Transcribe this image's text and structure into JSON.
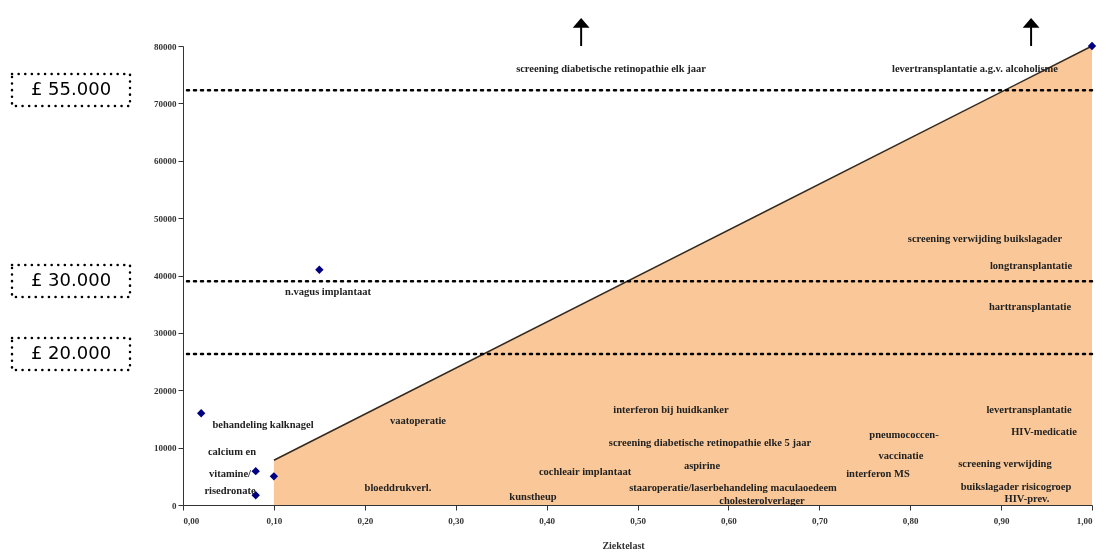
{
  "chart_data": {
    "type": "scatter",
    "xlabel": "Ziektelast",
    "xlim": [
      0,
      1
    ],
    "ylim": [
      0,
      80000
    ],
    "xticks": [
      {
        "value": 0,
        "label": "0,00"
      },
      {
        "value": 0.1,
        "label": "0,10"
      },
      {
        "value": 0.2,
        "label": "0,20"
      },
      {
        "value": 0.3,
        "label": "0,30"
      },
      {
        "value": 0.4,
        "label": "0,40"
      },
      {
        "value": 0.5,
        "label": "0,50"
      },
      {
        "value": 0.6,
        "label": "0,60"
      },
      {
        "value": 0.7,
        "label": "0,70"
      },
      {
        "value": 0.8,
        "label": "0,80"
      },
      {
        "value": 0.9,
        "label": "0,90"
      },
      {
        "value": 1,
        "label": "1,00"
      }
    ],
    "yticks": [
      0,
      10000,
      20000,
      30000,
      40000,
      50000,
      60000,
      70000,
      80000
    ],
    "grid": false,
    "legend": false,
    "series": [
      {
        "type": "area",
        "color": "#fac898",
        "x": [
          0.1,
          1
        ],
        "values": [
          7800,
          80000
        ]
      },
      {
        "marker": "diamond",
        "color": "#000080",
        "x": [
          0.02,
          0.08,
          0.08,
          0.1,
          0.15,
          1
        ],
        "values": [
          16000,
          5900,
          1700,
          5000,
          41000,
          80000
        ]
      }
    ],
    "ref_lines": [
      {
        "axis": "y",
        "value": 72300,
        "color": "#000000",
        "line_style": "dotted"
      },
      {
        "axis": "y",
        "value": 39000,
        "color": "#000000",
        "line_style": "dotted"
      },
      {
        "axis": "y",
        "value": 26300,
        "color": "#000000",
        "line_style": "dotted"
      }
    ],
    "annotations": [
      "screening diabetische retinopathie elk jaar",
      "levertransplantatie a.g.v. alcoholisme",
      "screening verwijding buikslagader",
      "longtransplantatie",
      "harttransplantatie",
      "n.vagus implantaat",
      "behandeling kalknagel",
      "calcium en",
      "vitamine/",
      "risedronate",
      "vaatoperatie",
      "bloeddrukverl.",
      "kunstheup",
      "interferon bij huidkanker",
      "screening diabetische retinopathie elke 5 jaar",
      "cochleair implantaat",
      "aspirine",
      "staaroperatie/laserbehandeling maculaoedeem",
      "cholesterolverlager",
      "pneumococcen-",
      "vaccinatie",
      "interferon MS",
      "levertransplantatie",
      "HIV-medicatie",
      "screening verwijding",
      "buikslagader risicogroep",
      "HIV-prev.",
      "£ 55.000",
      "£ 30.000",
      "£ 20.000"
    ]
  }
}
